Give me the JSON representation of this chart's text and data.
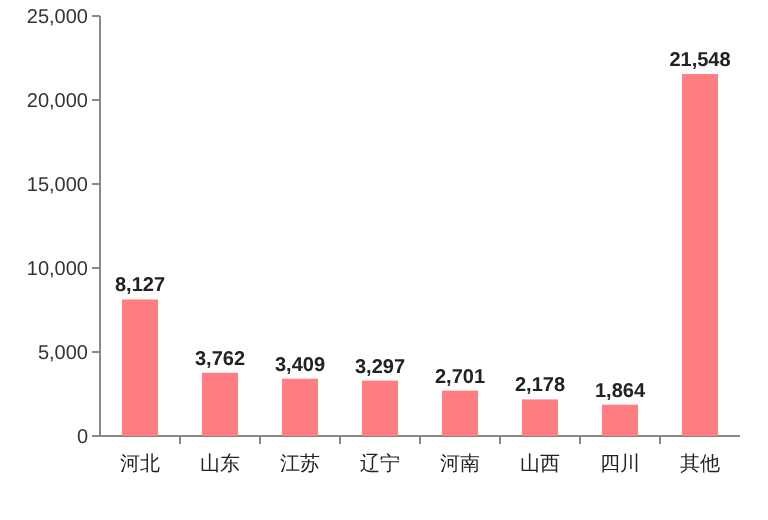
{
  "chart_data": {
    "type": "bar",
    "categories": [
      "河北",
      "山东",
      "江苏",
      "辽宁",
      "河南",
      "山西",
      "四川",
      "其他"
    ],
    "values": [
      8127,
      3762,
      3409,
      3297,
      2701,
      2178,
      1864,
      21548
    ],
    "value_labels": [
      "8,127",
      "3,762",
      "3,409",
      "3,297",
      "2,701",
      "2,178",
      "1,864",
      "21,548"
    ],
    "color": "#ff7c80",
    "ylim": [
      0,
      25000
    ],
    "yticks": [
      {
        "value": 0,
        "label": "0"
      },
      {
        "value": 5000,
        "label": "5,000"
      },
      {
        "value": 10000,
        "label": "10,000"
      },
      {
        "value": 15000,
        "label": "15,000"
      },
      {
        "value": 20000,
        "label": "20,000"
      },
      {
        "value": 25000,
        "label": "25,000"
      }
    ]
  }
}
